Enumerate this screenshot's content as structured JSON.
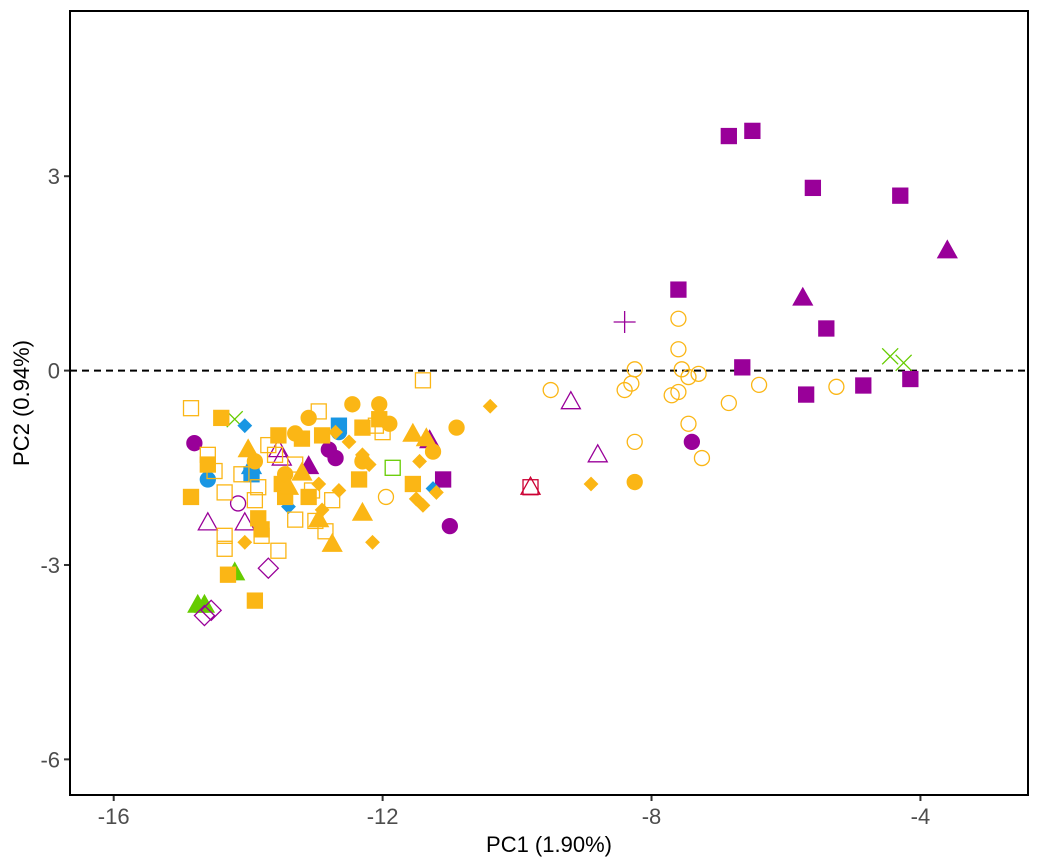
{
  "colors": {
    "orange": "#FBB615",
    "purple": "#990099",
    "blue": "#1996E3",
    "green": "#66CC00",
    "crimson": "#CC0033",
    "axis": "#000000",
    "tick_text": "#4d4d4d"
  },
  "chart_data": {
    "type": "scatter",
    "title": "",
    "xlabel": "PC1 (1.90%)",
    "ylabel": "PC2 (0.94%)",
    "xlim": [
      -16.65,
      -2.4
    ],
    "ylim": [
      -6.55,
      5.55
    ],
    "x_ticks": [
      -16,
      -12,
      -8,
      -4
    ],
    "x_tick_labels": [
      "-16",
      "-12",
      "-8",
      "-4"
    ],
    "y_ticks": [
      -6,
      -3,
      0,
      3
    ],
    "y_tick_labels": [
      "-6",
      "-3",
      "0",
      "3"
    ],
    "reference_line": {
      "y": 0,
      "style": "dashed"
    },
    "grid": false,
    "legend": "none",
    "points": [
      {
        "x": -6.85,
        "y": 3.62,
        "shape": "square",
        "fill": true,
        "color": "purple"
      },
      {
        "x": -6.5,
        "y": 3.7,
        "shape": "square",
        "fill": true,
        "color": "purple"
      },
      {
        "x": -5.6,
        "y": 2.82,
        "shape": "square",
        "fill": true,
        "color": "purple"
      },
      {
        "x": -4.3,
        "y": 2.7,
        "shape": "square",
        "fill": true,
        "color": "purple"
      },
      {
        "x": -7.6,
        "y": 1.25,
        "shape": "square",
        "fill": true,
        "color": "purple"
      },
      {
        "x": -5.4,
        "y": 0.65,
        "shape": "square",
        "fill": true,
        "color": "purple"
      },
      {
        "x": -6.65,
        "y": 0.05,
        "shape": "square",
        "fill": true,
        "color": "purple"
      },
      {
        "x": -5.7,
        "y": -0.37,
        "shape": "square",
        "fill": true,
        "color": "purple"
      },
      {
        "x": -4.85,
        "y": -0.23,
        "shape": "square",
        "fill": true,
        "color": "purple"
      },
      {
        "x": -4.15,
        "y": -0.13,
        "shape": "square",
        "fill": true,
        "color": "purple"
      },
      {
        "x": -11.1,
        "y": -1.68,
        "shape": "square",
        "fill": true,
        "color": "purple"
      },
      {
        "x": -3.6,
        "y": 1.85,
        "shape": "triangle",
        "fill": true,
        "color": "purple"
      },
      {
        "x": -5.75,
        "y": 1.12,
        "shape": "triangle",
        "fill": true,
        "color": "purple"
      },
      {
        "x": -11.3,
        "y": -1.08,
        "shape": "triangle",
        "fill": true,
        "color": "purple"
      },
      {
        "x": -13.1,
        "y": -1.48,
        "shape": "triangle",
        "fill": true,
        "color": "purple"
      },
      {
        "x": -8.4,
        "y": 0.75,
        "shape": "plus",
        "fill": false,
        "color": "purple"
      },
      {
        "x": -4.45,
        "y": 0.22,
        "shape": "cross",
        "fill": false,
        "color": "green"
      },
      {
        "x": -4.25,
        "y": 0.12,
        "shape": "cross",
        "fill": false,
        "color": "green"
      },
      {
        "x": -14.2,
        "y": -0.75,
        "shape": "cross",
        "fill": false,
        "color": "green"
      },
      {
        "x": -7.6,
        "y": 0.8,
        "shape": "circle",
        "fill": false,
        "color": "orange"
      },
      {
        "x": -7.6,
        "y": 0.33,
        "shape": "circle",
        "fill": false,
        "color": "orange"
      },
      {
        "x": -8.25,
        "y": 0.02,
        "shape": "circle",
        "fill": false,
        "color": "orange"
      },
      {
        "x": -7.55,
        "y": 0.02,
        "shape": "circle",
        "fill": false,
        "color": "orange"
      },
      {
        "x": -7.3,
        "y": -0.05,
        "shape": "circle",
        "fill": false,
        "color": "orange"
      },
      {
        "x": -7.45,
        "y": -0.1,
        "shape": "circle",
        "fill": false,
        "color": "orange"
      },
      {
        "x": -8.3,
        "y": -0.2,
        "shape": "circle",
        "fill": false,
        "color": "orange"
      },
      {
        "x": -8.4,
        "y": -0.3,
        "shape": "circle",
        "fill": false,
        "color": "orange"
      },
      {
        "x": -7.6,
        "y": -0.33,
        "shape": "circle",
        "fill": false,
        "color": "orange"
      },
      {
        "x": -7.7,
        "y": -0.38,
        "shape": "circle",
        "fill": false,
        "color": "orange"
      },
      {
        "x": -9.5,
        "y": -0.3,
        "shape": "circle",
        "fill": false,
        "color": "orange"
      },
      {
        "x": -6.4,
        "y": -0.22,
        "shape": "circle",
        "fill": false,
        "color": "orange"
      },
      {
        "x": -5.25,
        "y": -0.25,
        "shape": "circle",
        "fill": false,
        "color": "orange"
      },
      {
        "x": -6.85,
        "y": -0.5,
        "shape": "circle",
        "fill": false,
        "color": "orange"
      },
      {
        "x": -7.45,
        "y": -0.82,
        "shape": "circle",
        "fill": false,
        "color": "orange"
      },
      {
        "x": -8.25,
        "y": -1.1,
        "shape": "circle",
        "fill": false,
        "color": "orange"
      },
      {
        "x": -7.25,
        "y": -1.35,
        "shape": "circle",
        "fill": false,
        "color": "orange"
      },
      {
        "x": -11.95,
        "y": -1.95,
        "shape": "circle",
        "fill": false,
        "color": "orange"
      },
      {
        "x": -9.2,
        "y": -0.48,
        "shape": "triangle",
        "fill": false,
        "color": "purple"
      },
      {
        "x": -8.8,
        "y": -1.3,
        "shape": "triangle",
        "fill": false,
        "color": "purple"
      },
      {
        "x": -13.55,
        "y": -1.22,
        "shape": "triangle",
        "fill": false,
        "color": "purple"
      },
      {
        "x": -13.5,
        "y": -1.35,
        "shape": "triangle",
        "fill": false,
        "color": "purple"
      },
      {
        "x": -14.6,
        "y": -2.35,
        "shape": "triangle",
        "fill": false,
        "color": "purple"
      },
      {
        "x": -14.05,
        "y": -2.35,
        "shape": "triangle",
        "fill": false,
        "color": "purple"
      },
      {
        "x": -9.8,
        "y": -1.8,
        "shape": "square",
        "fill": false,
        "color": "crimson"
      },
      {
        "x": -9.8,
        "y": -1.8,
        "shape": "triangle",
        "fill": false,
        "color": "crimson"
      },
      {
        "x": -10.4,
        "y": -0.55,
        "shape": "diamond",
        "fill": true,
        "color": "orange"
      },
      {
        "x": -8.9,
        "y": -1.75,
        "shape": "diamond",
        "fill": true,
        "color": "orange"
      },
      {
        "x": -10.9,
        "y": -0.88,
        "shape": "circle",
        "fill": true,
        "color": "orange"
      },
      {
        "x": -8.25,
        "y": -1.72,
        "shape": "circle",
        "fill": true,
        "color": "orange"
      },
      {
        "x": -7.4,
        "y": -1.1,
        "shape": "circle",
        "fill": true,
        "color": "purple"
      },
      {
        "x": -11.0,
        "y": -2.4,
        "shape": "circle",
        "fill": true,
        "color": "purple"
      },
      {
        "x": -14.8,
        "y": -1.12,
        "shape": "circle",
        "fill": true,
        "color": "purple"
      },
      {
        "x": -12.7,
        "y": -1.35,
        "shape": "circle",
        "fill": true,
        "color": "purple"
      },
      {
        "x": -12.8,
        "y": -1.22,
        "shape": "circle",
        "fill": true,
        "color": "purple"
      },
      {
        "x": -14.15,
        "y": -2.05,
        "shape": "circle",
        "fill": false,
        "color": "purple"
      },
      {
        "x": -14.6,
        "y": -1.68,
        "shape": "circle",
        "fill": true,
        "color": "blue"
      },
      {
        "x": -12.65,
        "y": -0.95,
        "shape": "circle",
        "fill": true,
        "color": "blue"
      },
      {
        "x": -12.65,
        "y": -0.85,
        "shape": "square",
        "fill": true,
        "color": "blue"
      },
      {
        "x": -13.95,
        "y": -1.6,
        "shape": "square",
        "fill": true,
        "color": "blue"
      },
      {
        "x": -13.95,
        "y": -1.48,
        "shape": "triangle",
        "fill": true,
        "color": "blue"
      },
      {
        "x": -14.05,
        "y": -0.85,
        "shape": "diamond",
        "fill": true,
        "color": "blue"
      },
      {
        "x": -13.4,
        "y": -2.1,
        "shape": "diamond",
        "fill": true,
        "color": "blue"
      },
      {
        "x": -11.25,
        "y": -1.82,
        "shape": "diamond",
        "fill": true,
        "color": "blue"
      },
      {
        "x": -14.75,
        "y": -3.62,
        "shape": "triangle",
        "fill": true,
        "color": "green"
      },
      {
        "x": -14.65,
        "y": -3.62,
        "shape": "triangle",
        "fill": true,
        "color": "green"
      },
      {
        "x": -14.2,
        "y": -3.12,
        "shape": "triangle",
        "fill": true,
        "color": "green"
      },
      {
        "x": -11.85,
        "y": -1.5,
        "shape": "square",
        "fill": false,
        "color": "green"
      },
      {
        "x": -14.65,
        "y": -3.78,
        "shape": "diamond",
        "fill": false,
        "color": "purple"
      },
      {
        "x": -14.55,
        "y": -3.7,
        "shape": "diamond",
        "fill": false,
        "color": "purple"
      },
      {
        "x": -13.7,
        "y": -3.05,
        "shape": "diamond",
        "fill": false,
        "color": "purple"
      },
      {
        "x": -11.4,
        "y": -0.15,
        "shape": "square",
        "fill": false,
        "color": "orange"
      },
      {
        "x": -14.85,
        "y": -0.58,
        "shape": "square",
        "fill": false,
        "color": "orange"
      },
      {
        "x": -12.95,
        "y": -0.63,
        "shape": "square",
        "fill": false,
        "color": "orange"
      },
      {
        "x": -12.1,
        "y": -0.85,
        "shape": "square",
        "fill": false,
        "color": "orange"
      },
      {
        "x": -12.0,
        "y": -0.95,
        "shape": "square",
        "fill": false,
        "color": "orange"
      },
      {
        "x": -14.6,
        "y": -1.3,
        "shape": "square",
        "fill": false,
        "color": "orange"
      },
      {
        "x": -13.6,
        "y": -1.3,
        "shape": "square",
        "fill": false,
        "color": "orange"
      },
      {
        "x": -14.5,
        "y": -1.55,
        "shape": "square",
        "fill": false,
        "color": "orange"
      },
      {
        "x": -14.1,
        "y": -1.6,
        "shape": "square",
        "fill": false,
        "color": "orange"
      },
      {
        "x": -13.3,
        "y": -1.45,
        "shape": "square",
        "fill": false,
        "color": "orange"
      },
      {
        "x": -13.85,
        "y": -1.8,
        "shape": "square",
        "fill": false,
        "color": "orange"
      },
      {
        "x": -14.35,
        "y": -1.88,
        "shape": "square",
        "fill": false,
        "color": "orange"
      },
      {
        "x": -13.9,
        "y": -2.0,
        "shape": "square",
        "fill": false,
        "color": "orange"
      },
      {
        "x": -13.05,
        "y": -1.85,
        "shape": "square",
        "fill": false,
        "color": "orange"
      },
      {
        "x": -12.75,
        "y": -2.0,
        "shape": "square",
        "fill": false,
        "color": "orange"
      },
      {
        "x": -13.0,
        "y": -2.32,
        "shape": "square",
        "fill": false,
        "color": "orange"
      },
      {
        "x": -13.3,
        "y": -2.3,
        "shape": "square",
        "fill": false,
        "color": "orange"
      },
      {
        "x": -12.85,
        "y": -2.48,
        "shape": "square",
        "fill": false,
        "color": "orange"
      },
      {
        "x": -13.8,
        "y": -2.55,
        "shape": "square",
        "fill": false,
        "color": "orange"
      },
      {
        "x": -13.55,
        "y": -2.78,
        "shape": "square",
        "fill": false,
        "color": "orange"
      },
      {
        "x": -14.35,
        "y": -2.75,
        "shape": "square",
        "fill": false,
        "color": "orange"
      },
      {
        "x": -14.35,
        "y": -2.55,
        "shape": "square",
        "fill": false,
        "color": "orange"
      },
      {
        "x": -13.7,
        "y": -1.15,
        "shape": "square",
        "fill": false,
        "color": "orange"
      },
      {
        "x": -14.4,
        "y": -0.73,
        "shape": "square",
        "fill": true,
        "color": "orange"
      },
      {
        "x": -14.85,
        "y": -1.95,
        "shape": "square",
        "fill": true,
        "color": "orange"
      },
      {
        "x": -14.6,
        "y": -1.45,
        "shape": "square",
        "fill": true,
        "color": "orange"
      },
      {
        "x": -13.55,
        "y": -1.0,
        "shape": "square",
        "fill": true,
        "color": "orange"
      },
      {
        "x": -13.2,
        "y": -1.05,
        "shape": "square",
        "fill": true,
        "color": "orange"
      },
      {
        "x": -12.9,
        "y": -1.0,
        "shape": "square",
        "fill": true,
        "color": "orange"
      },
      {
        "x": -12.3,
        "y": -0.88,
        "shape": "square",
        "fill": true,
        "color": "orange"
      },
      {
        "x": -12.05,
        "y": -0.75,
        "shape": "square",
        "fill": true,
        "color": "orange"
      },
      {
        "x": -12.35,
        "y": -1.68,
        "shape": "square",
        "fill": true,
        "color": "orange"
      },
      {
        "x": -13.5,
        "y": -1.75,
        "shape": "square",
        "fill": true,
        "color": "orange"
      },
      {
        "x": -13.45,
        "y": -1.95,
        "shape": "square",
        "fill": true,
        "color": "orange"
      },
      {
        "x": -13.1,
        "y": -1.95,
        "shape": "square",
        "fill": true,
        "color": "orange"
      },
      {
        "x": -13.85,
        "y": -2.28,
        "shape": "square",
        "fill": true,
        "color": "orange"
      },
      {
        "x": -13.8,
        "y": -2.45,
        "shape": "square",
        "fill": true,
        "color": "orange"
      },
      {
        "x": -14.3,
        "y": -3.15,
        "shape": "square",
        "fill": true,
        "color": "orange"
      },
      {
        "x": -13.9,
        "y": -3.55,
        "shape": "square",
        "fill": true,
        "color": "orange"
      },
      {
        "x": -11.55,
        "y": -1.75,
        "shape": "square",
        "fill": true,
        "color": "orange"
      },
      {
        "x": -12.05,
        "y": -0.52,
        "shape": "circle",
        "fill": true,
        "color": "orange"
      },
      {
        "x": -12.45,
        "y": -0.52,
        "shape": "circle",
        "fill": true,
        "color": "orange"
      },
      {
        "x": -13.1,
        "y": -0.73,
        "shape": "circle",
        "fill": true,
        "color": "orange"
      },
      {
        "x": -13.3,
        "y": -0.97,
        "shape": "circle",
        "fill": true,
        "color": "orange"
      },
      {
        "x": -11.9,
        "y": -0.82,
        "shape": "circle",
        "fill": true,
        "color": "orange"
      },
      {
        "x": -11.25,
        "y": -1.25,
        "shape": "circle",
        "fill": true,
        "color": "orange"
      },
      {
        "x": -13.45,
        "y": -1.6,
        "shape": "circle",
        "fill": true,
        "color": "orange"
      },
      {
        "x": -12.3,
        "y": -1.4,
        "shape": "circle",
        "fill": true,
        "color": "orange"
      },
      {
        "x": -13.9,
        "y": -1.4,
        "shape": "circle",
        "fill": true,
        "color": "orange"
      },
      {
        "x": -11.35,
        "y": -1.05,
        "shape": "triangle",
        "fill": true,
        "color": "orange"
      },
      {
        "x": -11.55,
        "y": -0.98,
        "shape": "triangle",
        "fill": true,
        "color": "orange"
      },
      {
        "x": -14.0,
        "y": -1.22,
        "shape": "triangle",
        "fill": true,
        "color": "orange"
      },
      {
        "x": -13.2,
        "y": -1.58,
        "shape": "triangle",
        "fill": true,
        "color": "orange"
      },
      {
        "x": -13.4,
        "y": -1.8,
        "shape": "triangle",
        "fill": true,
        "color": "orange"
      },
      {
        "x": -12.95,
        "y": -2.3,
        "shape": "triangle",
        "fill": true,
        "color": "orange"
      },
      {
        "x": -12.3,
        "y": -2.2,
        "shape": "triangle",
        "fill": true,
        "color": "orange"
      },
      {
        "x": -12.75,
        "y": -2.68,
        "shape": "triangle",
        "fill": true,
        "color": "orange"
      },
      {
        "x": -12.7,
        "y": -0.95,
        "shape": "diamond",
        "fill": true,
        "color": "orange"
      },
      {
        "x": -12.5,
        "y": -1.1,
        "shape": "diamond",
        "fill": true,
        "color": "orange"
      },
      {
        "x": -12.3,
        "y": -1.3,
        "shape": "diamond",
        "fill": true,
        "color": "orange"
      },
      {
        "x": -12.2,
        "y": -1.45,
        "shape": "diamond",
        "fill": true,
        "color": "orange"
      },
      {
        "x": -11.45,
        "y": -1.4,
        "shape": "diamond",
        "fill": true,
        "color": "orange"
      },
      {
        "x": -11.5,
        "y": -1.98,
        "shape": "diamond",
        "fill": true,
        "color": "orange"
      },
      {
        "x": -11.4,
        "y": -2.08,
        "shape": "diamond",
        "fill": true,
        "color": "orange"
      },
      {
        "x": -12.95,
        "y": -1.75,
        "shape": "diamond",
        "fill": true,
        "color": "orange"
      },
      {
        "x": -12.65,
        "y": -1.85,
        "shape": "diamond",
        "fill": true,
        "color": "orange"
      },
      {
        "x": -12.9,
        "y": -2.15,
        "shape": "diamond",
        "fill": true,
        "color": "orange"
      },
      {
        "x": -14.05,
        "y": -2.65,
        "shape": "diamond",
        "fill": true,
        "color": "orange"
      },
      {
        "x": -12.15,
        "y": -2.65,
        "shape": "diamond",
        "fill": true,
        "color": "orange"
      },
      {
        "x": -11.2,
        "y": -1.88,
        "shape": "diamond",
        "fill": true,
        "color": "orange"
      }
    ]
  }
}
